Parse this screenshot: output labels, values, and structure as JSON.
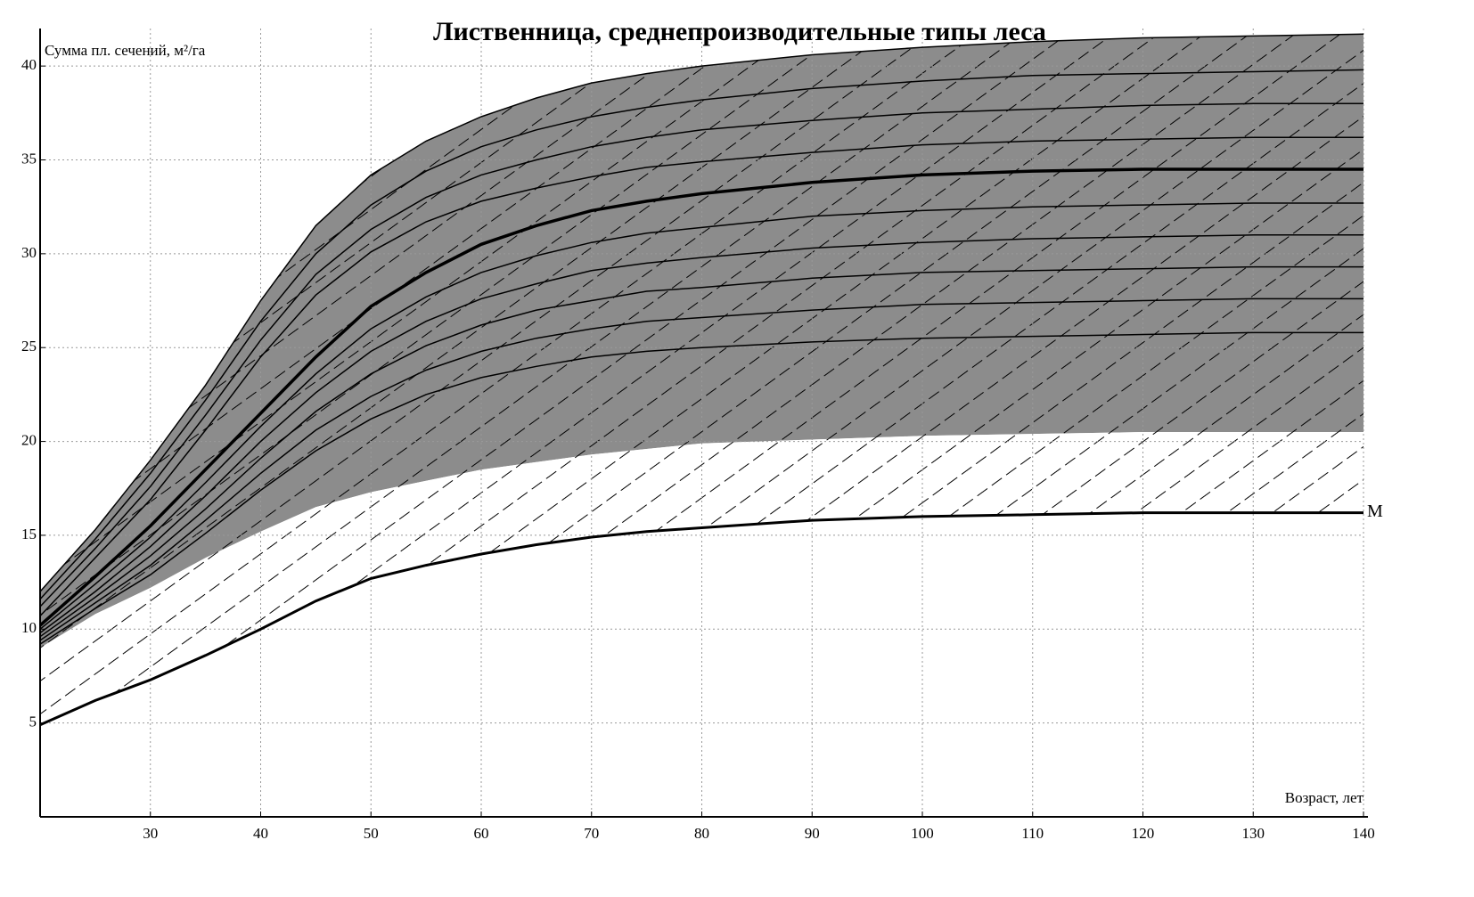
{
  "chart_data": {
    "type": "line",
    "title": "Лиственница, среднепроизводительные типы леса",
    "ylabel": "Сумма пл. сечений, м²/га",
    "xlabel": "Возраст, лет",
    "xlim": [
      20,
      140
    ],
    "ylim": [
      0,
      42
    ],
    "xticks": [
      30,
      40,
      50,
      60,
      70,
      80,
      90,
      100,
      110,
      120,
      130,
      140
    ],
    "yticks": [
      5,
      10,
      15,
      20,
      25,
      30,
      35,
      40
    ],
    "grid": true,
    "x": [
      20,
      25,
      30,
      35,
      40,
      45,
      50,
      55,
      60,
      65,
      70,
      75,
      80,
      90,
      100,
      110,
      120,
      130,
      140
    ],
    "series": [
      {
        "color": "#000000",
        "width": 1.5,
        "fill": "#8c8c8c",
        "hatch": true,
        "values": [
          12,
          15.3,
          19,
          23,
          27.5,
          31.5,
          34.2,
          36,
          37.3,
          38.3,
          39.1,
          39.6,
          40,
          40.6,
          41,
          41.3,
          41.5,
          41.6,
          41.7
        ]
      },
      {
        "fill": "#ffffff",
        "hatch": true,
        "values": [
          9,
          10.8,
          12.2,
          13.8,
          15.2,
          16.5,
          17.3,
          17.9,
          18.5,
          18.9,
          19.3,
          19.6,
          19.9,
          20.1,
          20.3,
          20.4,
          20.5,
          20.5,
          20.5
        ]
      },
      {
        "name": "М",
        "color": "#000000",
        "width": 3,
        "values": [
          4.9,
          6.2,
          7.3,
          8.6,
          10,
          11.5,
          12.7,
          13.4,
          14,
          14.5,
          14.9,
          15.2,
          15.4,
          15.8,
          16,
          16.1,
          16.2,
          16.2,
          16.2
        ]
      },
      {
        "color": "#000000",
        "width": 1.5,
        "values": [
          11.6,
          14.8,
          18.3,
          22.2,
          26.4,
          30,
          32.6,
          34.4,
          35.7,
          36.6,
          37.3,
          37.8,
          38.2,
          38.8,
          39.2,
          39.5,
          39.6,
          39.7,
          39.8
        ]
      },
      {
        "color": "#000000",
        "width": 1.5,
        "values": [
          11.2,
          14.3,
          17.6,
          21.4,
          25.4,
          28.9,
          31.3,
          33,
          34.2,
          35,
          35.7,
          36.2,
          36.6,
          37.1,
          37.5,
          37.7,
          37.9,
          38,
          38
        ]
      },
      {
        "color": "#000000",
        "width": 1.5,
        "values": [
          10.7,
          13.8,
          16.9,
          20.6,
          24.5,
          27.8,
          30.1,
          31.7,
          32.8,
          33.5,
          34.1,
          34.6,
          34.9,
          35.4,
          35.8,
          36,
          36.1,
          36.2,
          36.2
        ]
      },
      {
        "color": "#000000",
        "width": 3.5,
        "values": [
          10.2,
          12.8,
          15.5,
          18.5,
          21.5,
          24.5,
          27.2,
          29,
          30.5,
          31.5,
          32.3,
          32.8,
          33.2,
          33.8,
          34.2,
          34.4,
          34.5,
          34.5,
          34.5
        ]
      },
      {
        "color": "#000000",
        "width": 1.5,
        "values": [
          10,
          12.4,
          14.9,
          17.8,
          20.8,
          23.6,
          26,
          27.7,
          29,
          29.9,
          30.6,
          31.1,
          31.4,
          32,
          32.3,
          32.5,
          32.6,
          32.7,
          32.7
        ]
      },
      {
        "color": "#000000",
        "width": 1.5,
        "values": [
          9.8,
          12,
          14.4,
          17.1,
          20,
          22.6,
          24.8,
          26.4,
          27.6,
          28.4,
          29.1,
          29.5,
          29.8,
          30.3,
          30.6,
          30.8,
          30.9,
          31,
          31
        ]
      },
      {
        "color": "#000000",
        "width": 1.5,
        "values": [
          9.6,
          11.7,
          13.9,
          16.4,
          19.1,
          21.6,
          23.6,
          25.1,
          26.2,
          27,
          27.5,
          28,
          28.2,
          28.7,
          29,
          29.1,
          29.2,
          29.3,
          29.3
        ]
      },
      {
        "color": "#000000",
        "width": 1.5,
        "values": [
          9.4,
          11.4,
          13.4,
          15.8,
          18.3,
          20.6,
          22.4,
          23.8,
          24.8,
          25.5,
          26,
          26.4,
          26.6,
          27,
          27.3,
          27.4,
          27.5,
          27.6,
          27.6
        ]
      },
      {
        "color": "#000000",
        "width": 1.5,
        "values": [
          9.2,
          11.1,
          12.9,
          15.1,
          17.4,
          19.5,
          21.2,
          22.5,
          23.4,
          24,
          24.5,
          24.8,
          25,
          25.3,
          25.5,
          25.6,
          25.7,
          25.8,
          25.8
        ]
      }
    ]
  }
}
